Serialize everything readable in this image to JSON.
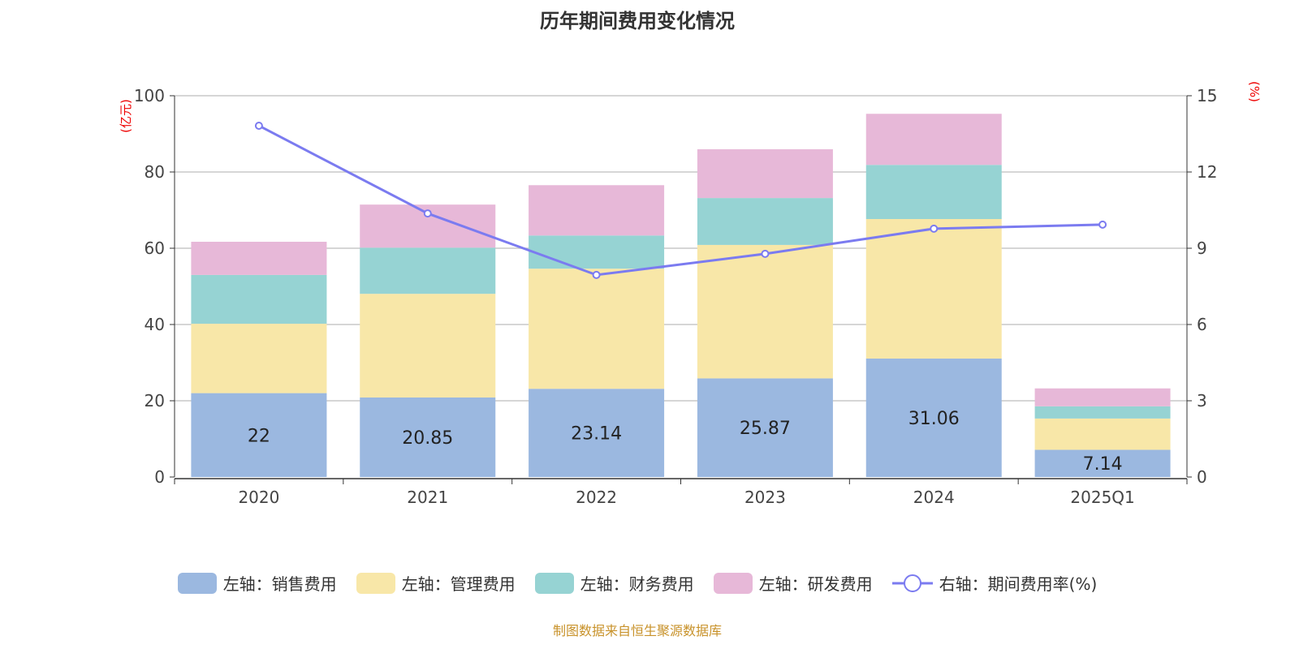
{
  "chart_data": {
    "type": "bar",
    "title": "历年期间费用变化情况",
    "categories": [
      "2020",
      "2021",
      "2022",
      "2023",
      "2024",
      "2025Q1"
    ],
    "left_axis": {
      "unit_label": "(亿元)",
      "ylim": [
        0,
        100
      ],
      "ticks": [
        0,
        20,
        40,
        60,
        80,
        100
      ]
    },
    "right_axis": {
      "unit_label": "(%)",
      "ylim": [
        0,
        15
      ],
      "ticks": [
        0,
        3,
        6,
        9,
        12,
        15
      ]
    },
    "stacked": true,
    "grid": true,
    "legend_position": "bottom",
    "series": [
      {
        "name": "左轴：销售费用",
        "type": "bar",
        "axis": "left",
        "color": "#9bb8e0",
        "values": [
          22,
          20.85,
          23.14,
          25.87,
          31.06,
          7.14
        ],
        "show_labels": true
      },
      {
        "name": "左轴：管理费用",
        "type": "bar",
        "axis": "left",
        "color": "#f8e7a8",
        "values": [
          18.2,
          27.2,
          31.5,
          35.0,
          36.6,
          8.2
        ]
      },
      {
        "name": "左轴：财务费用",
        "type": "bar",
        "axis": "left",
        "color": "#96d3d3",
        "values": [
          12.8,
          12.1,
          8.7,
          12.3,
          14.2,
          3.2
        ]
      },
      {
        "name": "左轴：研发费用",
        "type": "bar",
        "axis": "left",
        "color": "#e7b8d8",
        "values": [
          8.7,
          11.3,
          13.2,
          12.8,
          13.4,
          4.7
        ]
      },
      {
        "name": "右轴：期间费用率(%)",
        "type": "line",
        "axis": "right",
        "color": "#7b7bf0",
        "values": [
          13.82,
          10.37,
          7.95,
          8.78,
          9.77,
          9.93
        ]
      }
    ]
  },
  "footer": "制图数据来自恒生聚源数据库"
}
